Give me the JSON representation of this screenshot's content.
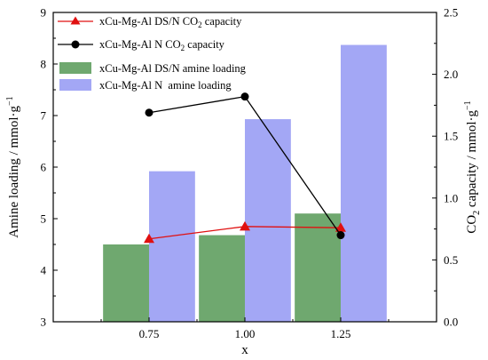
{
  "chart_data": {
    "type": "bar",
    "categories": [
      "0.75",
      "1.00",
      "1.25"
    ],
    "x": [
      0.75,
      1.0,
      1.25
    ],
    "xlabel": "x",
    "xlim": [
      0.5,
      1.5
    ],
    "ylabel_left": {
      "main": "Amine loading / mmol",
      "dot": "·",
      "g": "g",
      "sup": "−1"
    },
    "ylabel_right": {
      "pre": "CO",
      "sub": "2",
      "mid": " capacity / mmol",
      "dot": "·",
      "g": "g",
      "sup": "−1"
    },
    "ylim_left": [
      3,
      9
    ],
    "ylim_right": [
      0,
      2.5
    ],
    "yticks_left": [
      "3",
      "4",
      "5",
      "6",
      "7",
      "8",
      "9"
    ],
    "yticks_right": [
      "0.0",
      "0.5",
      "1.0",
      "1.5",
      "2.0",
      "2.5"
    ],
    "grid": false,
    "legend_position": "top-left",
    "bar_series": [
      {
        "legend": "xCu-Mg-Al DS/N amine loading",
        "axis": "left",
        "color": "#6fa86f",
        "values": [
          4.5,
          4.68,
          5.1
        ]
      },
      {
        "legend": "xCu-Mg-Al N  amine loading",
        "axis": "left",
        "color": "#a3a7f5",
        "values": [
          5.92,
          6.93,
          8.37
        ]
      }
    ],
    "line_series": [
      {
        "legend_pre": "xCu-Mg-Al DS/N CO",
        "legend_sub": "2",
        "legend_post": " capacity",
        "axis": "right",
        "color": "#e01010",
        "marker": "triangle",
        "values": [
          0.67,
          0.77,
          0.76
        ]
      },
      {
        "legend_pre": "xCu-Mg-Al N CO",
        "legend_sub": "2",
        "legend_post": " capacity",
        "axis": "right",
        "color": "#000000",
        "marker": "circle",
        "values": [
          1.69,
          1.82,
          0.7
        ]
      }
    ]
  }
}
